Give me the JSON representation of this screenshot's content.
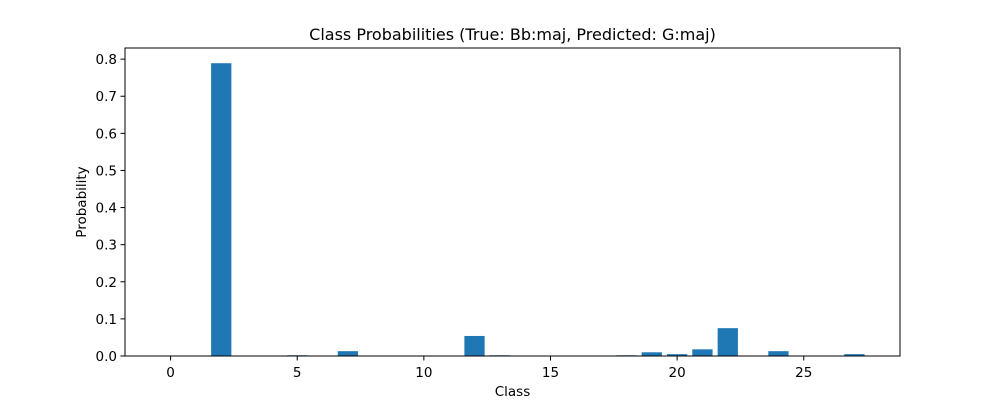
{
  "chart_data": {
    "type": "bar",
    "title": "Class Probabilities (True: Bb:maj, Predicted: G:maj)",
    "xlabel": "Class",
    "ylabel": "Probability",
    "xlim": [
      -1.8,
      28.8
    ],
    "ylim": [
      0,
      0.83
    ],
    "xticks": [
      0,
      5,
      10,
      15,
      20,
      25
    ],
    "xtick_labels": [
      "0",
      "5",
      "10",
      "15",
      "20",
      "25"
    ],
    "yticks": [
      0.0,
      0.1,
      0.2,
      0.3,
      0.4,
      0.5,
      0.6,
      0.7,
      0.8
    ],
    "ytick_labels": [
      "0.0",
      "0.1",
      "0.2",
      "0.3",
      "0.4",
      "0.5",
      "0.6",
      "0.7",
      "0.8"
    ],
    "bar_color": "#1f77b4",
    "categories": [
      0,
      1,
      2,
      3,
      4,
      5,
      6,
      7,
      8,
      9,
      10,
      11,
      12,
      13,
      14,
      15,
      16,
      17,
      18,
      19,
      20,
      21,
      22,
      23,
      24,
      25,
      26,
      27
    ],
    "values": [
      0.0,
      0.0,
      0.789,
      0.0,
      0.0,
      0.002,
      0.0,
      0.013,
      0.0,
      0.0,
      0.0,
      0.0,
      0.054,
      0.002,
      0.0,
      0.0,
      0.0,
      0.0,
      0.002,
      0.01,
      0.005,
      0.018,
      0.075,
      0.0,
      0.013,
      0.0,
      0.0,
      0.005
    ]
  }
}
